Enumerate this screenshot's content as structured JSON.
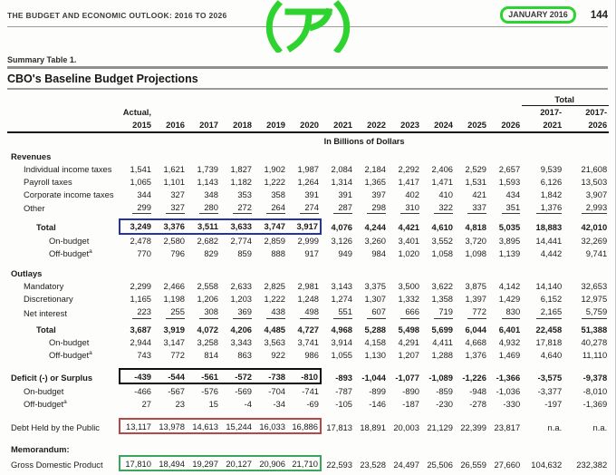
{
  "page_header": {
    "report_title": "THE BUDGET AND ECONOMIC OUTLOOK: 2016 TO 2026",
    "date_label": "JANUARY 2016",
    "page_number": "144",
    "annotation_text": "(ア)",
    "annotation_color": "#2fd32f",
    "date_box_color": "#2fd32f"
  },
  "table_meta": {
    "summary_label": "Summary Table 1.",
    "title": "CBO's Baseline Budget Projections",
    "units_label": "In Billions of Dollars",
    "col_actual_label": "Actual,",
    "years": [
      "2015",
      "2016",
      "2017",
      "2018",
      "2019",
      "2020",
      "2021",
      "2022",
      "2023",
      "2024",
      "2025",
      "2026"
    ],
    "total_group_label": "Total",
    "total_columns": [
      {
        "line1": "2017-",
        "line2": "2021"
      },
      {
        "line1": "2017-",
        "line2": "2026"
      }
    ]
  },
  "highlight_colors": {
    "revenues_total": "#2434a8",
    "deficit": "#0e0e0e",
    "debt": "#b94747",
    "gdp": "#3aa55c"
  },
  "rows": [
    {
      "label": "Revenues",
      "type": "section",
      "bold": true
    },
    {
      "label": "Individual income taxes",
      "indent": 1,
      "values": [
        "1,541",
        "1,621",
        "1,739",
        "1,827",
        "1,902",
        "1,987",
        "2,084",
        "2,184",
        "2,292",
        "2,406",
        "2,529",
        "2,657",
        "9,539",
        "21,608"
      ]
    },
    {
      "label": "Payroll taxes",
      "indent": 1,
      "values": [
        "1,065",
        "1,101",
        "1,143",
        "1,182",
        "1,222",
        "1,264",
        "1,314",
        "1,365",
        "1,417",
        "1,471",
        "1,531",
        "1,593",
        "6,126",
        "13,503"
      ]
    },
    {
      "label": "Corporate income taxes",
      "indent": 1,
      "values": [
        "344",
        "327",
        "348",
        "353",
        "358",
        "391",
        "391",
        "397",
        "402",
        "410",
        "421",
        "434",
        "1,842",
        "3,907"
      ]
    },
    {
      "label": "Other",
      "indent": 1,
      "sumline": true,
      "values": [
        "299",
        "327",
        "280",
        "272",
        "264",
        "274",
        "287",
        "298",
        "310",
        "322",
        "337",
        "351",
        "1,376",
        "2,993"
      ]
    },
    {
      "label": "Total",
      "indent": 2,
      "bold": true,
      "gap": 4,
      "highlight": "revenues_total",
      "values": [
        "3,249",
        "3,376",
        "3,511",
        "3,633",
        "3,747",
        "3,917",
        "4,076",
        "4,244",
        "4,421",
        "4,610",
        "4,818",
        "5,035",
        "18,883",
        "42,010"
      ]
    },
    {
      "label": "On-budget",
      "indent": 3,
      "values": [
        "2,478",
        "2,580",
        "2,682",
        "2,774",
        "2,859",
        "2,999",
        "3,126",
        "3,260",
        "3,401",
        "3,552",
        "3,720",
        "3,895",
        "14,441",
        "32,269"
      ]
    },
    {
      "label": "Off-budget",
      "sup": "a",
      "indent": 3,
      "values": [
        "770",
        "796",
        "829",
        "859",
        "888",
        "917",
        "949",
        "984",
        "1,020",
        "1,058",
        "1,098",
        "1,139",
        "4,442",
        "9,741"
      ]
    },
    {
      "label": "Outlays",
      "type": "section",
      "bold": true,
      "gap": 8
    },
    {
      "label": "Mandatory",
      "indent": 1,
      "values": [
        "2,299",
        "2,466",
        "2,558",
        "2,633",
        "2,825",
        "2,981",
        "3,143",
        "3,375",
        "3,500",
        "3,622",
        "3,875",
        "4,142",
        "14,140",
        "32,653"
      ]
    },
    {
      "label": "Discretionary",
      "indent": 1,
      "values": [
        "1,165",
        "1,198",
        "1,206",
        "1,203",
        "1,222",
        "1,248",
        "1,274",
        "1,307",
        "1,332",
        "1,358",
        "1,397",
        "1,429",
        "6,152",
        "12,975"
      ]
    },
    {
      "label": "Net interest",
      "indent": 1,
      "sumline": true,
      "values": [
        "223",
        "255",
        "308",
        "369",
        "438",
        "498",
        "551",
        "607",
        "666",
        "719",
        "772",
        "830",
        "2,165",
        "5,759"
      ]
    },
    {
      "label": "Total",
      "indent": 2,
      "bold": true,
      "gap": 4,
      "values": [
        "3,687",
        "3,919",
        "4,072",
        "4,206",
        "4,485",
        "4,727",
        "4,968",
        "5,288",
        "5,498",
        "5,699",
        "6,044",
        "6,401",
        "22,458",
        "51,388"
      ]
    },
    {
      "label": "On-budget",
      "indent": 3,
      "values": [
        "2,944",
        "3,147",
        "3,258",
        "3,343",
        "3,563",
        "3,741",
        "3,914",
        "4,158",
        "4,291",
        "4,411",
        "4,668",
        "4,932",
        "17,818",
        "40,278"
      ]
    },
    {
      "label": "Off-budget",
      "sup": "a",
      "indent": 3,
      "values": [
        "743",
        "772",
        "814",
        "863",
        "922",
        "986",
        "1,055",
        "1,130",
        "1,207",
        "1,288",
        "1,376",
        "1,469",
        "4,640",
        "11,110"
      ]
    },
    {
      "label": "Deficit (-) or Surplus",
      "bold": true,
      "gap": 8,
      "highlight": "deficit",
      "values": [
        "-439",
        "-544",
        "-561",
        "-572",
        "-738",
        "-810",
        "-893",
        "-1,044",
        "-1,077",
        "-1,089",
        "-1,226",
        "-1,366",
        "-3,575",
        "-9,378"
      ]
    },
    {
      "label": "On-budget",
      "indent": 1,
      "values": [
        "-466",
        "-567",
        "-576",
        "-569",
        "-704",
        "-741",
        "-787",
        "-899",
        "-890",
        "-859",
        "-948",
        "-1,036",
        "-3,377",
        "-8,010"
      ]
    },
    {
      "label": "Off-budget",
      "sup": "a",
      "indent": 1,
      "values": [
        "27",
        "23",
        "15",
        "-4",
        "-34",
        "-69",
        "-105",
        "-146",
        "-187",
        "-230",
        "-278",
        "-330",
        "-197",
        "-1,369"
      ]
    },
    {
      "label": "Debt Held by the Public",
      "gap": 9,
      "highlight": "debt",
      "values": [
        "13,117",
        "13,978",
        "14,613",
        "15,244",
        "16,033",
        "16,886",
        "17,813",
        "18,891",
        "20,003",
        "21,129",
        "22,399",
        "23,817",
        "n.a.",
        "n.a."
      ]
    },
    {
      "label": "Memorandum:",
      "type": "section",
      "bold": true,
      "gap": 9
    },
    {
      "label": "Gross Domestic Product",
      "highlight": "gdp",
      "values": [
        "17,810",
        "18,494",
        "19,297",
        "20,127",
        "20,906",
        "21,710",
        "22,593",
        "23,528",
        "24,497",
        "25,506",
        "26,559",
        "27,660",
        "104,632",
        "232,382"
      ]
    }
  ]
}
